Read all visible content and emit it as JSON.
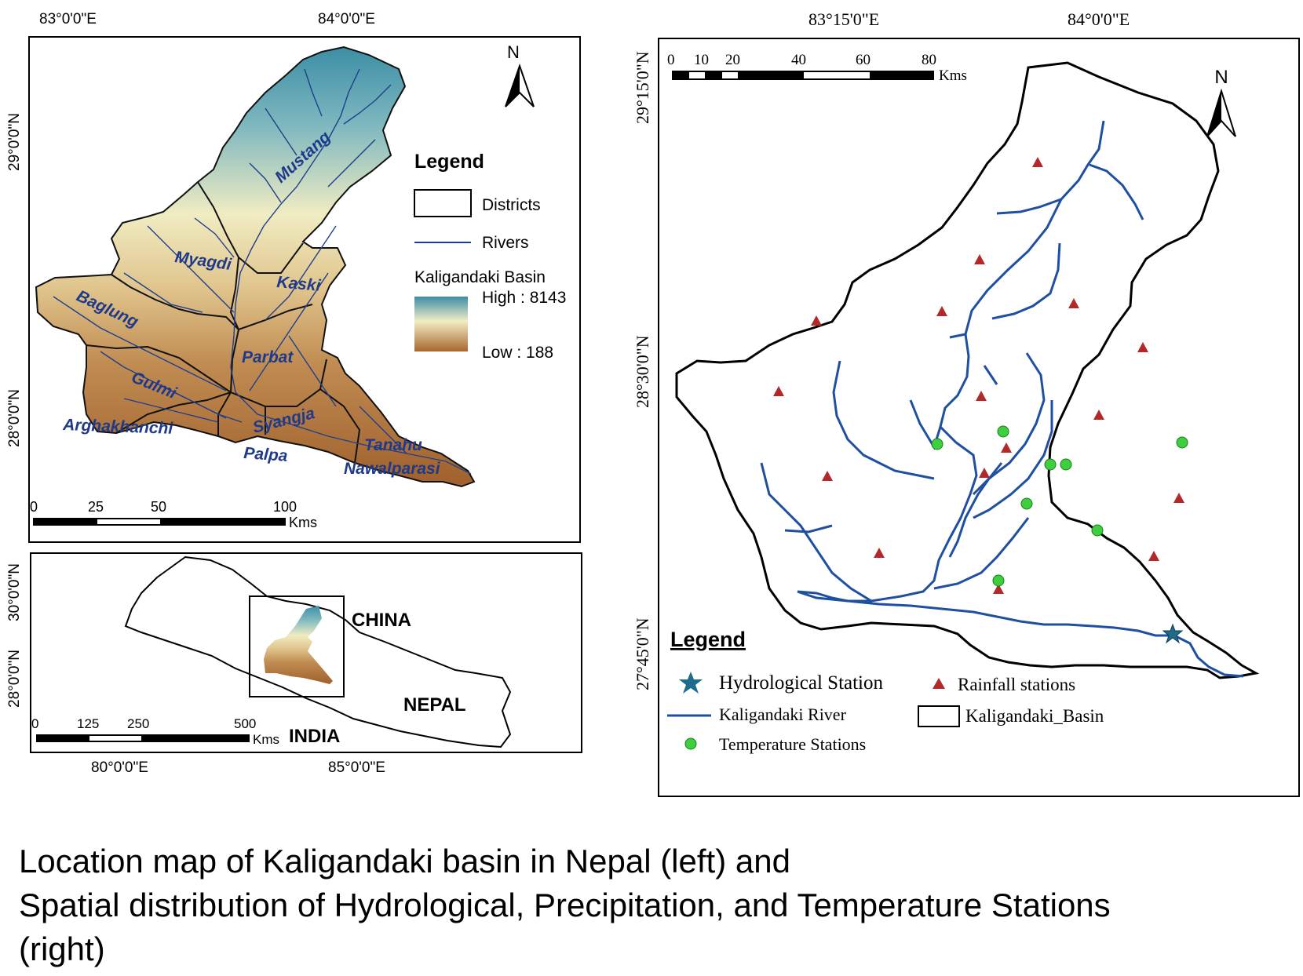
{
  "left_map": {
    "top_coords": [
      "83°0'0\"E",
      "84°0'0\"E"
    ],
    "side_coords": [
      "29°0'0\"N",
      "28°0'0\"N"
    ],
    "districts": [
      "Mustang",
      "Myagdi",
      "Kaski",
      "Baglung",
      "Parbat",
      "Gulmi",
      "Arghakhanchi",
      "Syangja",
      "Palpa",
      "Tanahu",
      "Nawalparasi"
    ],
    "legend": {
      "title": "Legend",
      "districts_label": "Districts",
      "rivers_label": "Rivers",
      "basin_label": "Kaligandaki Basin",
      "high_label": "High : 8143",
      "low_label": "Low : 188"
    },
    "north_label": "N",
    "scale": {
      "ticks": [
        "0",
        "25",
        "50",
        "100"
      ],
      "unit": "Kms"
    }
  },
  "inset_map": {
    "side_coords": [
      "30°0'0\"N",
      "28°0'0\"N"
    ],
    "bottom_coords": [
      "80°0'0\"E",
      "85°0'0\"E"
    ],
    "labels": {
      "china": "CHINA",
      "nepal": "NEPAL",
      "india": "INDIA"
    },
    "scale": {
      "ticks": [
        "0",
        "125",
        "250",
        "500"
      ],
      "unit": "Kms"
    }
  },
  "right_map": {
    "top_coords": [
      "83°15'0\"E",
      "84°0'0\"E"
    ],
    "side_coords": [
      "29°15'0\"N",
      "28°30'0\"N",
      "27°45'0\"N"
    ],
    "scale": {
      "ticks": [
        "0",
        "10",
        "20",
        "40",
        "60",
        "80"
      ],
      "unit": "Kms"
    },
    "north_label": "N",
    "legend": {
      "title": "Legend",
      "hydro_label": "Hydrological Station",
      "river_label": "Kaligandaki River",
      "temp_label": "Temperature Stations",
      "rain_label": "Rainfall stations",
      "basin_label": "Kaligandaki_Basin"
    }
  },
  "caption": {
    "line1": "Location map of Kaligandaki basin in Nepal (left) and",
    "line2": "Spatial distribution of Hydrological, Precipitation, and Temperature Stations",
    "line3": "(right)"
  },
  "colors": {
    "river_blue": "#1f4fa0",
    "district_label": "#1f3a8a",
    "rain_marker": "#b5282a",
    "temp_marker": "#3ecf3e",
    "hydro_marker": "#1e6b8c",
    "elev_high": "#3d8fa6",
    "elev_mid": "#f1e6b8",
    "elev_low": "#a8662e"
  }
}
